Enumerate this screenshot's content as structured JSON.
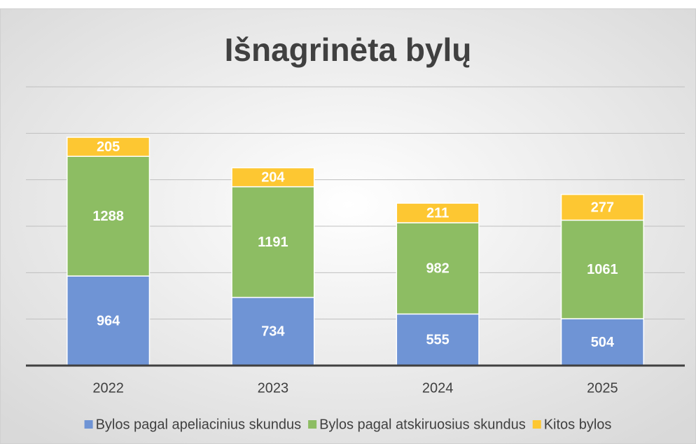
{
  "chart_data": {
    "type": "stacked_bar",
    "title": "Išnagrinėta bylų",
    "categories": [
      "2022",
      "2023",
      "2024",
      "2025"
    ],
    "series": [
      {
        "name": "Bylos pagal apeliacinius skundus",
        "color": "#6f94d5",
        "values": [
          964,
          734,
          555,
          504
        ]
      },
      {
        "name": "Bylos pagal atskiruosius skundus",
        "color": "#8dbd63",
        "values": [
          1288,
          1191,
          982,
          1061
        ]
      },
      {
        "name": "Kitos bylos",
        "color": "#fdc732",
        "values": [
          205,
          204,
          211,
          277
        ]
      }
    ],
    "ylim": [
      0,
      3000
    ],
    "yticks": [
      0,
      500,
      1000,
      1500,
      2000,
      2500,
      3000
    ],
    "grid": true,
    "legend": "bottom"
  }
}
